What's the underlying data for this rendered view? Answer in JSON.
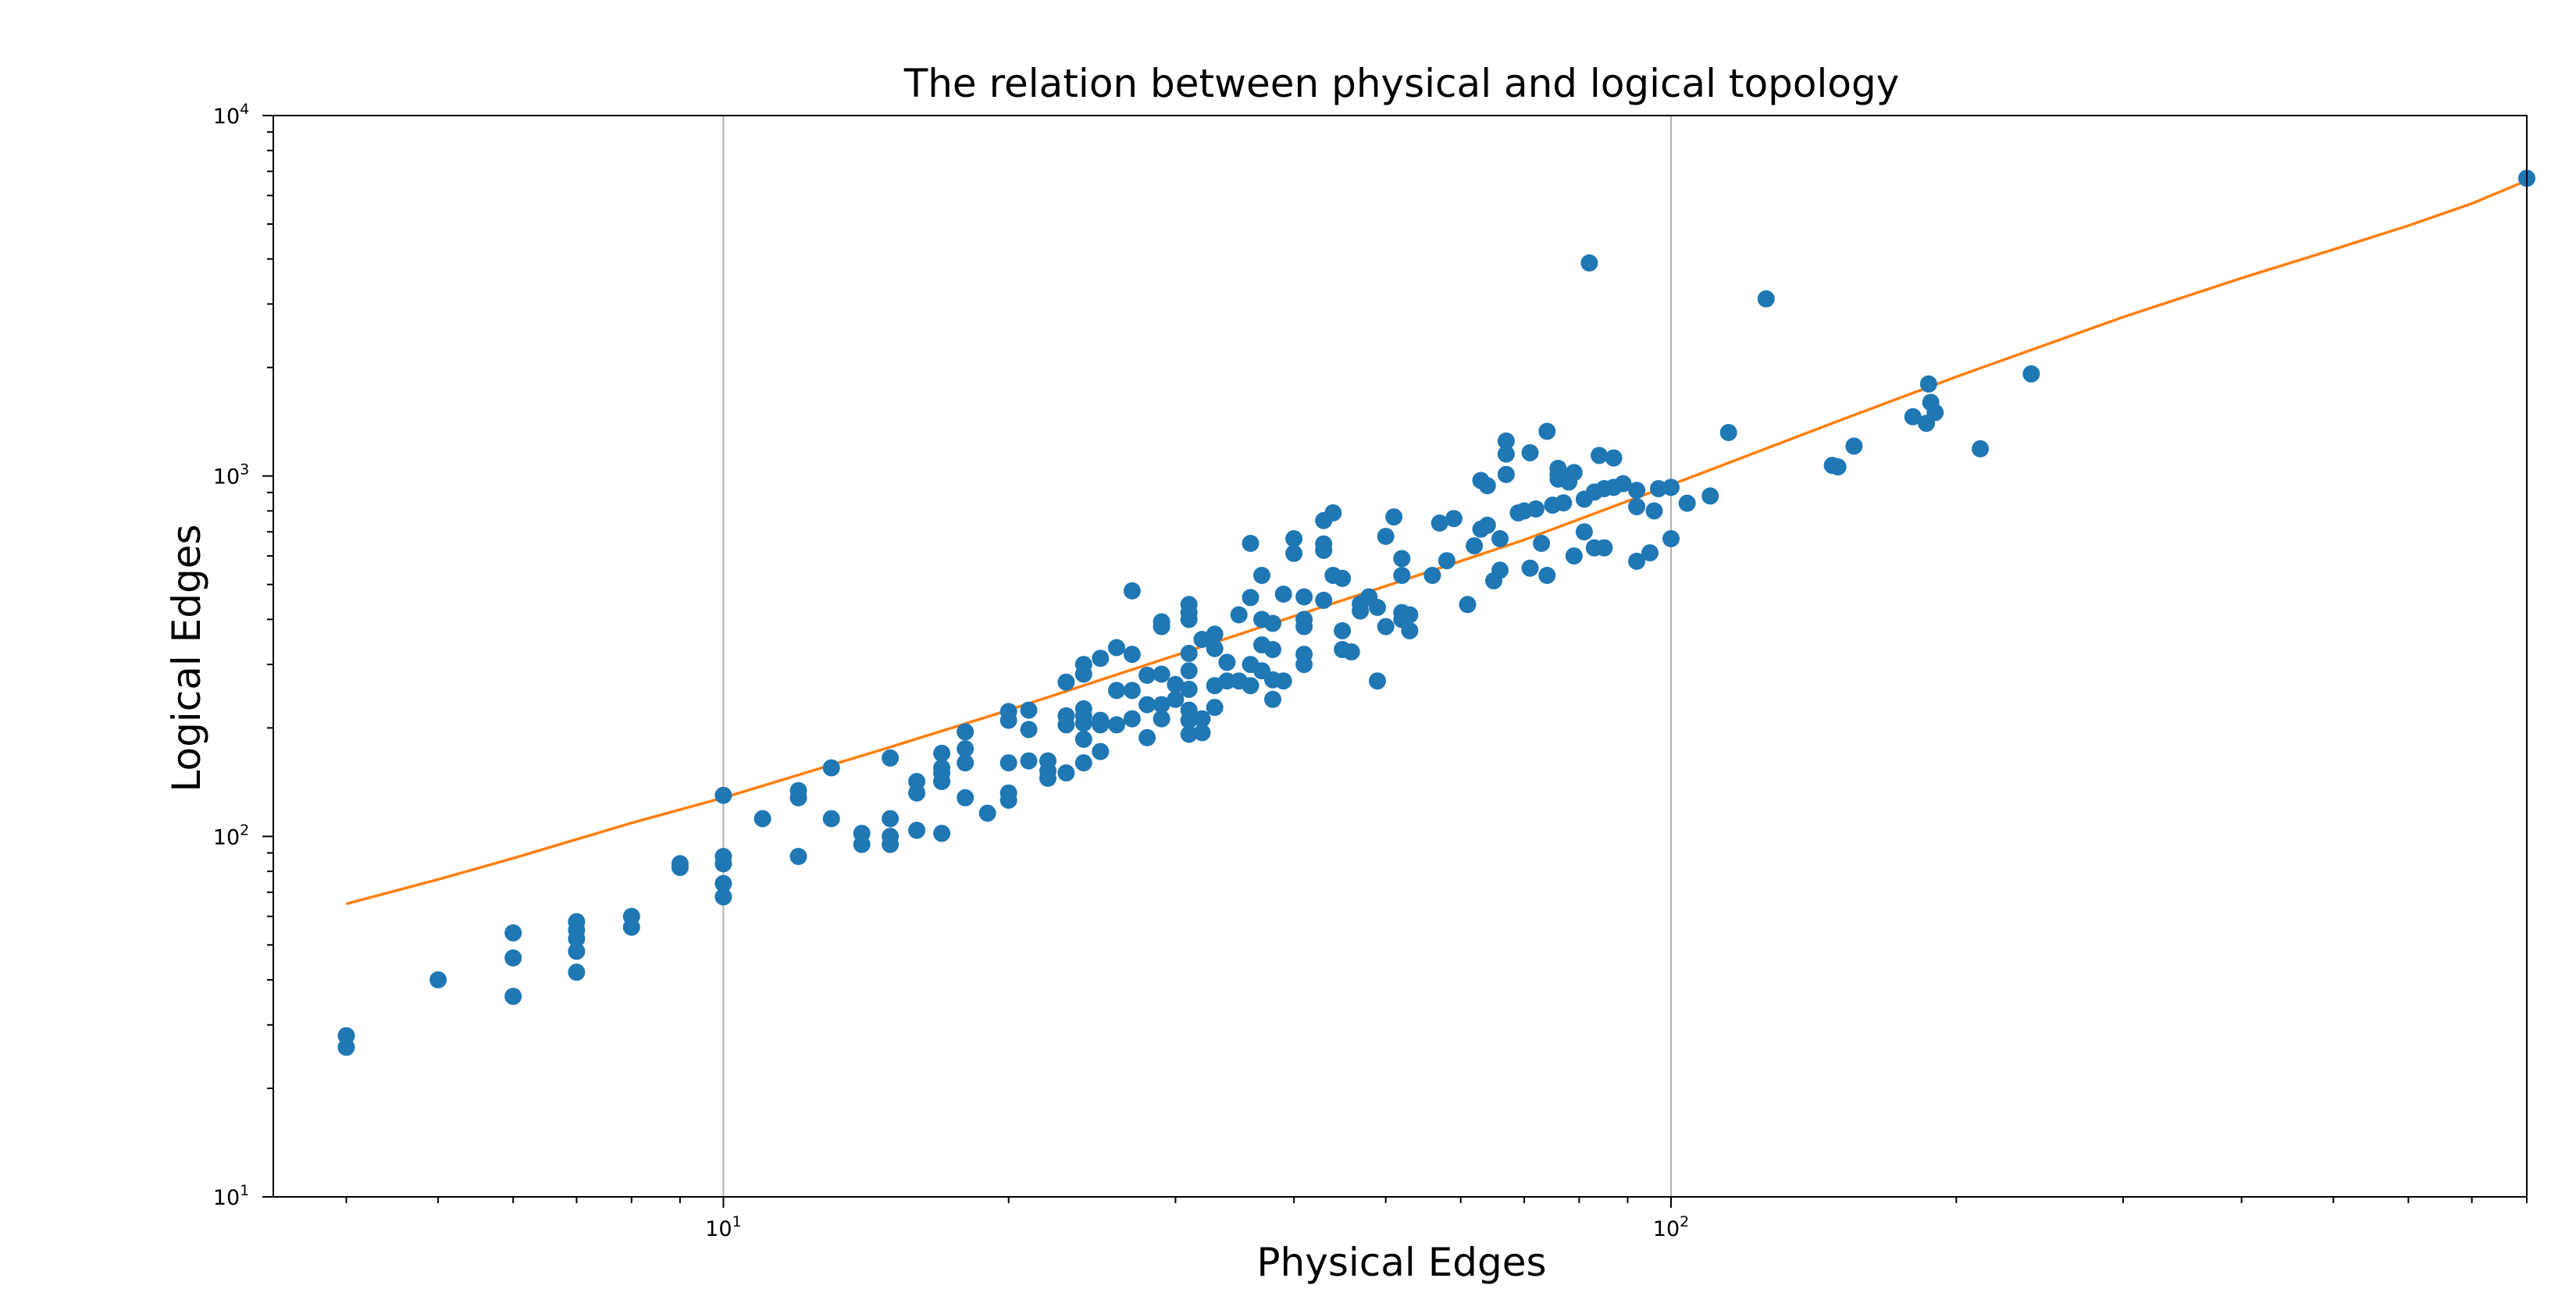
{
  "chart_data": {
    "type": "scatter",
    "title": "The relation between physical and logical topology",
    "xlabel": "Physical Edges",
    "ylabel": "Logical Edges",
    "xscale": "log",
    "yscale": "log",
    "xlim": [
      3.35,
      800
    ],
    "ylim": [
      10,
      10000
    ],
    "grid": "vertical major gridlines",
    "x_ticks": [
      {
        "value": 10,
        "base": "10",
        "exp": "1"
      },
      {
        "value": 100,
        "base": "10",
        "exp": "2"
      }
    ],
    "y_ticks": [
      {
        "value": 10,
        "base": "10",
        "exp": "1"
      },
      {
        "value": 100,
        "base": "10",
        "exp": "2"
      },
      {
        "value": 1000,
        "base": "10",
        "exp": "3"
      },
      {
        "value": 10000,
        "base": "10",
        "exp": "4"
      }
    ],
    "colors": {
      "points": "#1f77b4",
      "fit": "#ff7f0e",
      "grid": "#b0b0b0"
    },
    "series": [
      {
        "kind": "scatter",
        "points": [
          [
            4,
            26
          ],
          [
            4,
            28
          ],
          [
            5,
            40
          ],
          [
            6,
            36
          ],
          [
            6,
            46
          ],
          [
            6,
            54
          ],
          [
            7,
            42
          ],
          [
            7,
            48
          ],
          [
            7,
            52
          ],
          [
            7,
            55
          ],
          [
            7,
            58
          ],
          [
            8,
            56
          ],
          [
            8,
            60
          ],
          [
            9,
            82
          ],
          [
            9,
            84
          ],
          [
            10,
            68
          ],
          [
            10,
            74
          ],
          [
            10,
            84
          ],
          [
            10,
            88
          ],
          [
            10,
            130
          ],
          [
            11,
            112
          ],
          [
            12,
            88
          ],
          [
            12,
            128
          ],
          [
            12,
            134
          ],
          [
            13,
            112
          ],
          [
            13,
            155
          ],
          [
            14,
            95
          ],
          [
            14,
            102
          ],
          [
            15,
            95
          ],
          [
            15,
            100
          ],
          [
            15,
            112
          ],
          [
            15,
            165
          ],
          [
            16,
            104
          ],
          [
            16,
            132
          ],
          [
            16,
            142
          ],
          [
            17,
            102
          ],
          [
            17,
            142
          ],
          [
            17,
            150
          ],
          [
            17,
            155
          ],
          [
            17,
            170
          ],
          [
            18,
            128
          ],
          [
            18,
            160
          ],
          [
            18,
            175
          ],
          [
            18,
            195
          ],
          [
            19,
            116
          ],
          [
            20,
            126
          ],
          [
            20,
            132
          ],
          [
            20,
            160
          ],
          [
            20,
            210
          ],
          [
            20,
            222
          ],
          [
            21,
            162
          ],
          [
            21,
            198
          ],
          [
            21,
            224
          ],
          [
            22,
            145
          ],
          [
            22,
            152
          ],
          [
            22,
            162
          ],
          [
            23,
            150
          ],
          [
            23,
            204
          ],
          [
            23,
            216
          ],
          [
            23,
            268
          ],
          [
            24,
            160
          ],
          [
            24,
            186
          ],
          [
            24,
            206
          ],
          [
            24,
            216
          ],
          [
            24,
            226
          ],
          [
            24,
            282
          ],
          [
            24,
            300
          ],
          [
            25,
            172
          ],
          [
            25,
            204
          ],
          [
            25,
            210
          ],
          [
            25,
            312
          ],
          [
            26,
            204
          ],
          [
            26,
            254
          ],
          [
            26,
            334
          ],
          [
            27,
            212
          ],
          [
            27,
            254
          ],
          [
            27,
            320
          ],
          [
            27,
            480
          ],
          [
            28,
            188
          ],
          [
            28,
            232
          ],
          [
            28,
            280
          ],
          [
            29,
            212
          ],
          [
            29,
            232
          ],
          [
            29,
            282
          ],
          [
            29,
            382
          ],
          [
            29,
            394
          ],
          [
            30,
            240
          ],
          [
            30,
            264
          ],
          [
            31,
            192
          ],
          [
            31,
            210
          ],
          [
            31,
            224
          ],
          [
            31,
            256
          ],
          [
            31,
            288
          ],
          [
            31,
            322
          ],
          [
            31,
            400
          ],
          [
            31,
            418
          ],
          [
            31,
            440
          ],
          [
            32,
            194
          ],
          [
            32,
            212
          ],
          [
            32,
            352
          ],
          [
            33,
            228
          ],
          [
            33,
            262
          ],
          [
            33,
            332
          ],
          [
            33,
            364
          ],
          [
            34,
            270
          ],
          [
            34,
            304
          ],
          [
            35,
            270
          ],
          [
            35,
            412
          ],
          [
            36,
            262
          ],
          [
            36,
            300
          ],
          [
            36,
            460
          ],
          [
            36,
            650
          ],
          [
            37,
            288
          ],
          [
            37,
            340
          ],
          [
            37,
            400
          ],
          [
            37,
            530
          ],
          [
            38,
            240
          ],
          [
            38,
            272
          ],
          [
            38,
            330
          ],
          [
            38,
            390
          ],
          [
            39,
            270
          ],
          [
            39,
            470
          ],
          [
            40,
            610
          ],
          [
            40,
            670
          ],
          [
            41,
            300
          ],
          [
            41,
            320
          ],
          [
            41,
            382
          ],
          [
            41,
            400
          ],
          [
            41,
            462
          ],
          [
            43,
            452
          ],
          [
            43,
            622
          ],
          [
            43,
            648
          ],
          [
            43,
            752
          ],
          [
            44,
            530
          ],
          [
            44,
            790
          ],
          [
            45,
            330
          ],
          [
            45,
            372
          ],
          [
            45,
            520
          ],
          [
            46,
            325
          ],
          [
            47,
            422
          ],
          [
            47,
            442
          ],
          [
            48,
            462
          ],
          [
            49,
            270
          ],
          [
            49,
            432
          ],
          [
            50,
            382
          ],
          [
            50,
            680
          ],
          [
            51,
            770
          ],
          [
            52,
            400
          ],
          [
            52,
            418
          ],
          [
            52,
            530
          ],
          [
            52,
            590
          ],
          [
            53,
            372
          ],
          [
            53,
            412
          ],
          [
            56,
            530
          ],
          [
            57,
            740
          ],
          [
            58,
            582
          ],
          [
            59,
            762
          ],
          [
            61,
            440
          ],
          [
            62,
            640
          ],
          [
            63,
            712
          ],
          [
            63,
            972
          ],
          [
            64,
            730
          ],
          [
            64,
            940
          ],
          [
            65,
            512
          ],
          [
            66,
            548
          ],
          [
            66,
            670
          ],
          [
            67,
            1010
          ],
          [
            67,
            1150
          ],
          [
            67,
            1250
          ],
          [
            69,
            790
          ],
          [
            70,
            800
          ],
          [
            71,
            555
          ],
          [
            71,
            1160
          ],
          [
            72,
            810
          ],
          [
            73,
            650
          ],
          [
            74,
            530
          ],
          [
            74,
            1330
          ],
          [
            75,
            830
          ],
          [
            76,
            980
          ],
          [
            76,
            1010
          ],
          [
            76,
            1050
          ],
          [
            77,
            842
          ],
          [
            78,
            962
          ],
          [
            79,
            600
          ],
          [
            79,
            1022
          ],
          [
            81,
            700
          ],
          [
            81,
            862
          ],
          [
            82,
            3900
          ],
          [
            83,
            632
          ],
          [
            83,
            902
          ],
          [
            84,
            1140
          ],
          [
            85,
            632
          ],
          [
            85,
            922
          ],
          [
            87,
            1122
          ],
          [
            87,
            930
          ],
          [
            89,
            952
          ],
          [
            92,
            580
          ],
          [
            92,
            822
          ],
          [
            92,
            912
          ],
          [
            95,
            612
          ],
          [
            96,
            800
          ],
          [
            97,
            922
          ],
          [
            100,
            930
          ],
          [
            100,
            670
          ],
          [
            104,
            840
          ],
          [
            110,
            880
          ],
          [
            115,
            1320
          ],
          [
            126,
            3100
          ],
          [
            148,
            1070
          ],
          [
            150,
            1060
          ],
          [
            156,
            1210
          ],
          [
            180,
            1460
          ],
          [
            186,
            1400
          ],
          [
            187,
            1800
          ],
          [
            188,
            1600
          ],
          [
            190,
            1500
          ],
          [
            212,
            1190
          ],
          [
            240,
            1920
          ],
          [
            800,
            6700
          ]
        ]
      },
      {
        "kind": "fit",
        "curve": [
          [
            4,
            65
          ],
          [
            5,
            76
          ],
          [
            6,
            87
          ],
          [
            8,
            109
          ],
          [
            10,
            128
          ],
          [
            15,
            177
          ],
          [
            20,
            224
          ],
          [
            30,
            318
          ],
          [
            40,
            408
          ],
          [
            50,
            495
          ],
          [
            70,
            665
          ],
          [
            100,
            945
          ],
          [
            150,
            1420
          ],
          [
            200,
            1885
          ],
          [
            300,
            2760
          ],
          [
            400,
            3540
          ],
          [
            500,
            4250
          ],
          [
            600,
            4950
          ],
          [
            700,
            5700
          ],
          [
            800,
            6600
          ]
        ]
      }
    ]
  }
}
